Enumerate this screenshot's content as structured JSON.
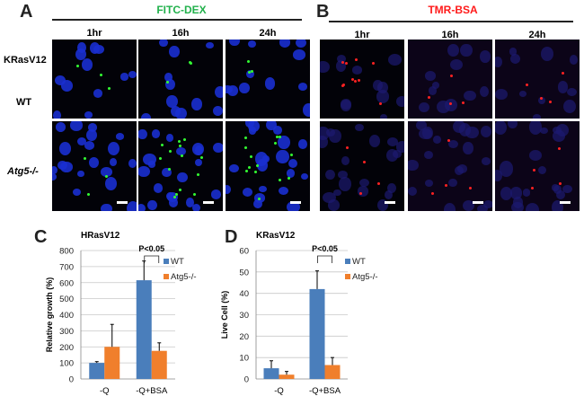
{
  "panel_a": {
    "letter": "A",
    "title": "FITC-DEX",
    "title_color": "#22b14c",
    "times": [
      "1hr",
      "16h",
      "24h"
    ],
    "rows": [
      "KRasV12",
      "WT",
      "Atg5-/-"
    ]
  },
  "panel_b": {
    "letter": "B",
    "title": "TMR-BSA",
    "title_color": "#ff1a1a",
    "times": [
      "1hr",
      "16h",
      "24h"
    ]
  },
  "chart_data": [
    {
      "letter": "C",
      "type": "bar",
      "title": "HRasV12",
      "ylabel": "Relative growth (%)",
      "xlabel": "",
      "categories": [
        "-Q",
        "-Q+BSA"
      ],
      "ylim": [
        0,
        800
      ],
      "yticks": [
        0,
        100,
        200,
        300,
        400,
        500,
        600,
        700,
        800
      ],
      "grid": true,
      "legend": "top-right",
      "annotation": "P<0.05",
      "series": [
        {
          "name": "WT",
          "color": "#4a7ebb",
          "values": [
            100,
            615
          ],
          "errors": [
            8,
            120
          ]
        },
        {
          "name": "Atg5-/-",
          "color": "#f07f2c",
          "values": [
            200,
            175
          ],
          "errors": [
            140,
            50
          ]
        }
      ]
    },
    {
      "letter": "D",
      "type": "bar",
      "title": "KRasV12",
      "ylabel": "Live Cell (%)",
      "xlabel": "",
      "categories": [
        "-Q",
        "-Q+BSA"
      ],
      "ylim": [
        0,
        60
      ],
      "yticks": [
        0,
        10,
        20,
        30,
        40,
        50,
        60
      ],
      "grid": true,
      "legend": "top-right",
      "annotation": "P<0.05",
      "series": [
        {
          "name": "WT",
          "color": "#4a7ebb",
          "values": [
            5,
            42
          ],
          "errors": [
            3.5,
            8.5
          ]
        },
        {
          "name": "Atg5-/-",
          "color": "#f07f2c",
          "values": [
            2,
            6.5
          ],
          "errors": [
            1.5,
            3.5
          ]
        }
      ]
    }
  ]
}
